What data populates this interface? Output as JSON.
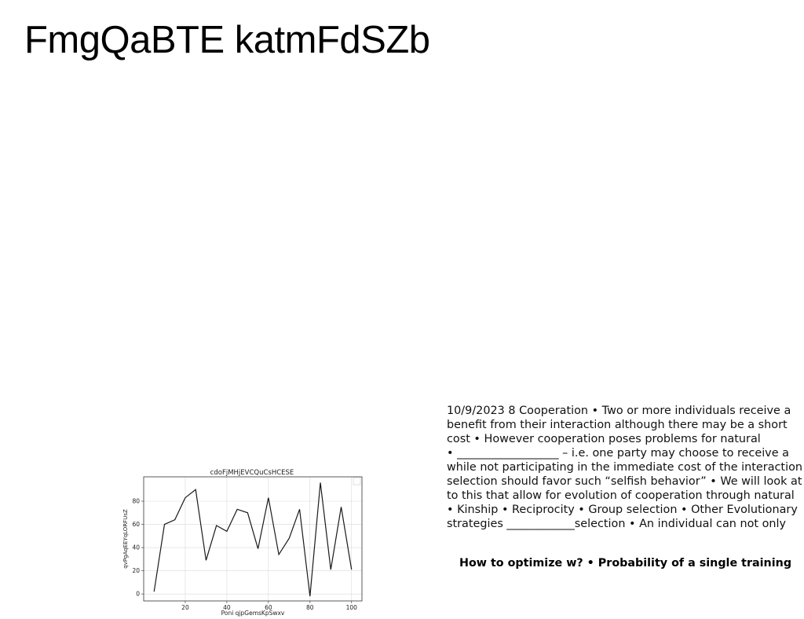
{
  "page": {
    "title": "FmgQaBTE katmFdSZb"
  },
  "text_block": {
    "lines": [
      "10/9/2023 8 Cooperation • Two or more individuals receive a",
      "benefit from their interaction although there may be a short",
      "cost • However cooperation poses problems for natural",
      "• __________________ – i.e. one party may choose to receive a",
      "while not participating in the immediate cost of the interaction •",
      "selection should favor such “selfish behavior” • We will look at",
      "to this that allow for evolution of cooperation through natural",
      "• Kinship • Reciprocity • Group selection • Other Evolutionary",
      "strategies ____________selection • An individual can not only"
    ],
    "bold_line": "How to optimize w? • Probability of a single training"
  },
  "chart_data": {
    "type": "line",
    "title": "cdoFjMHjEVCQuCsHCESE",
    "xlabel": "Poni qjpGemsKpSwxv",
    "ylabel": "qvPgAqEEYqLORFUsZ",
    "x": [
      5,
      10,
      15,
      20,
      25,
      30,
      35,
      40,
      45,
      50,
      55,
      60,
      65,
      70,
      75,
      80,
      85,
      90,
      95,
      100
    ],
    "series": [
      {
        "values": [
          2,
          60,
          64,
          83,
          90,
          29,
          59,
          54,
          73,
          70,
          39,
          83,
          34,
          48,
          73,
          -2,
          96,
          21,
          75,
          21
        ]
      }
    ],
    "xlim": [
      0,
      105
    ],
    "ylim": [
      -6,
      101
    ],
    "xticks": [
      20,
      40,
      60,
      80,
      100
    ],
    "yticks": [
      0,
      20,
      40,
      60,
      80
    ],
    "grid": true,
    "line_color": "#1a1a1a",
    "legend": "top-right, empty"
  }
}
